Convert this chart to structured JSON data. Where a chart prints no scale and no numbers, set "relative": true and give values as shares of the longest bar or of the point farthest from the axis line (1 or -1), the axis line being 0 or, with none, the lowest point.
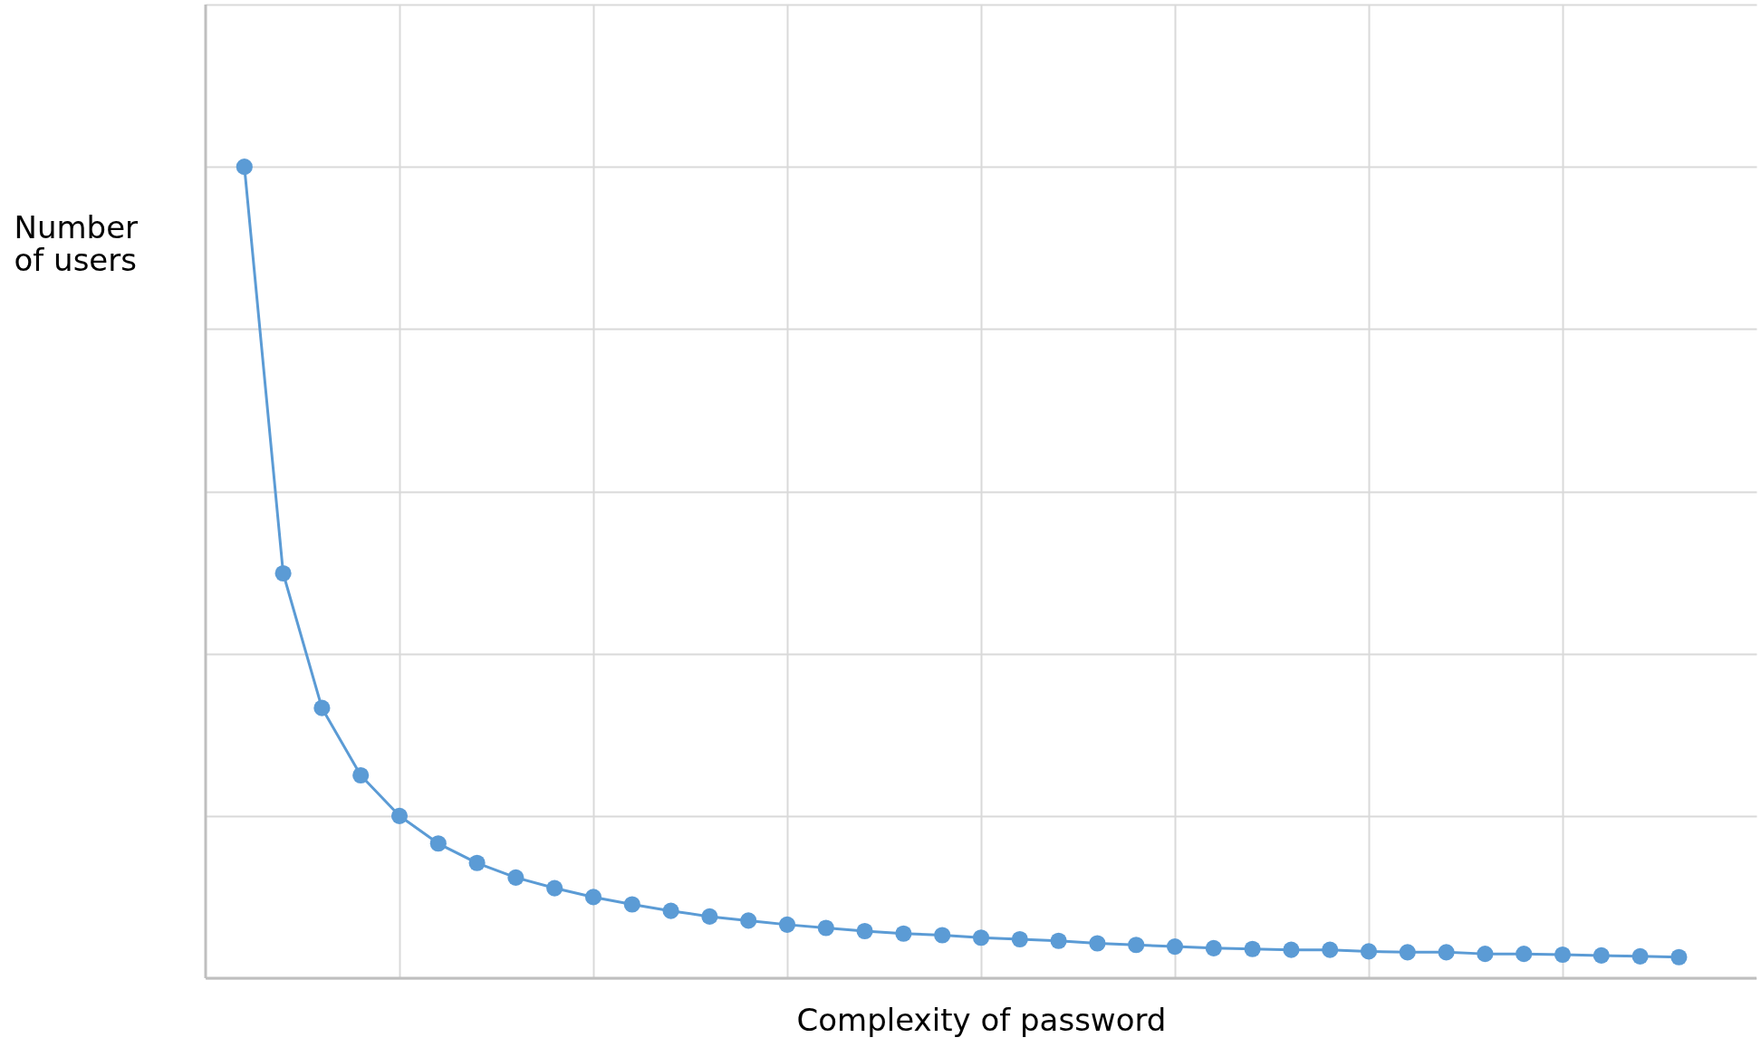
{
  "chart_data": {
    "type": "line",
    "xlabel": "Complexity of password",
    "ylabel": "Number of users",
    "relative": true,
    "grid": true,
    "marker": "circle",
    "categories": [
      null,
      null,
      null,
      null,
      null,
      null,
      null,
      null,
      null,
      null,
      null,
      null,
      null,
      null,
      null,
      null,
      null,
      null,
      null,
      null,
      null,
      null,
      null,
      null,
      null,
      null,
      null,
      null,
      null,
      null,
      null,
      null,
      null,
      null,
      null,
      null,
      null,
      null
    ],
    "series": [
      {
        "color": "#5b9bd5",
        "values": [
          1,
          0.499,
          0.333,
          0.25,
          0.2,
          0.166,
          0.142,
          0.124,
          0.111,
          0.1,
          0.091,
          0.083,
          0.076,
          0.071,
          0.066,
          0.062,
          0.058,
          0.055,
          0.053,
          0.05,
          0.048,
          0.046,
          0.043,
          0.041,
          0.039,
          0.037,
          0.036,
          0.035,
          0.035,
          0.033,
          0.032,
          0.032,
          0.03,
          0.03,
          0.029,
          0.028,
          0.027,
          0.026
        ]
      }
    ]
  }
}
